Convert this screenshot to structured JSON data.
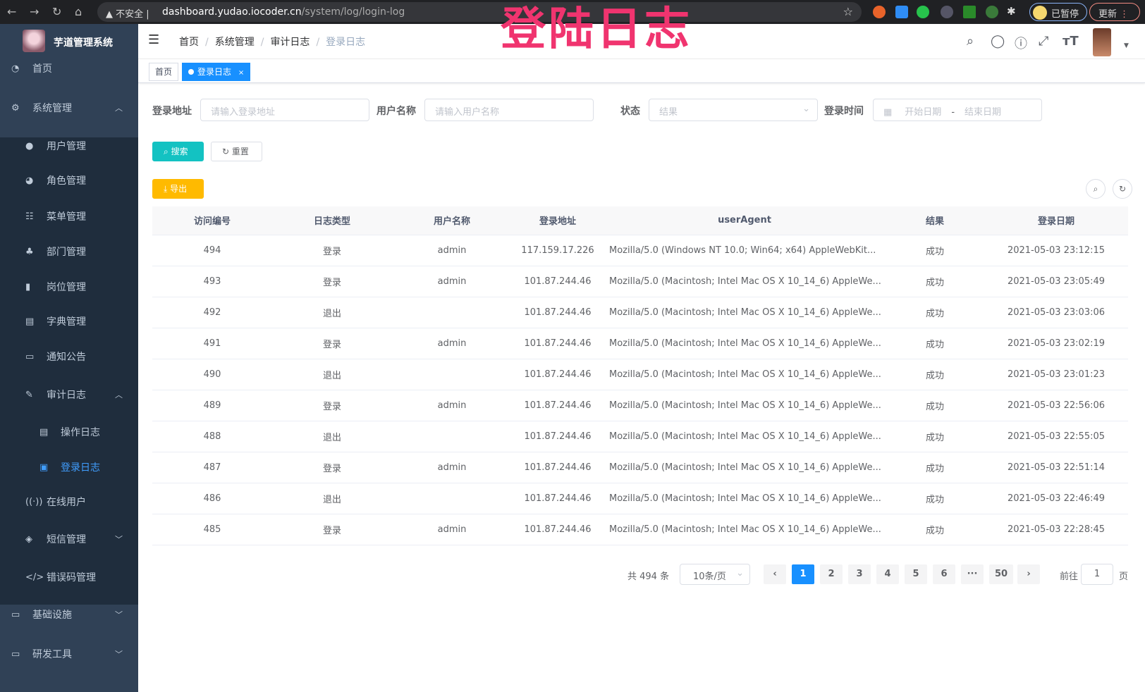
{
  "browser": {
    "security": "不安全",
    "host": "dashboard.yudao.iocoder.cn",
    "path": "/system/log/login-log",
    "paused": "已暂停",
    "update": "更新"
  },
  "app": {
    "title": "芋道管理系统"
  },
  "sidebar": {
    "items": [
      {
        "label": "首页",
        "icon": "dashboard-icon"
      },
      {
        "label": "系统管理",
        "icon": "gear-icon"
      },
      {
        "label": "用户管理",
        "icon": "user-icon"
      },
      {
        "label": "角色管理",
        "icon": "peoples-icon"
      },
      {
        "label": "菜单管理",
        "icon": "tree-table-icon"
      },
      {
        "label": "部门管理",
        "icon": "tree-icon"
      },
      {
        "label": "岗位管理",
        "icon": "post-icon"
      },
      {
        "label": "字典管理",
        "icon": "dict-icon"
      },
      {
        "label": "通知公告",
        "icon": "message-icon"
      },
      {
        "label": "审计日志",
        "icon": "log-icon"
      },
      {
        "label": "操作日志",
        "icon": "form-icon"
      },
      {
        "label": "登录日志",
        "icon": "logininfor-icon"
      },
      {
        "label": "在线用户",
        "icon": "online-icon"
      },
      {
        "label": "短信管理",
        "icon": "validCode-icon"
      },
      {
        "label": "错误码管理",
        "icon": "code-icon"
      },
      {
        "label": "基础设施",
        "icon": "monitor-icon"
      },
      {
        "label": "研发工具",
        "icon": "tool-icon"
      }
    ]
  },
  "breadcrumb": [
    "首页",
    "系统管理",
    "审计日志",
    "登录日志"
  ],
  "overlay_title": "登陆日志",
  "tags": {
    "home": "首页",
    "current": "登录日志",
    "close": "×"
  },
  "filters": {
    "address_label": "登录地址",
    "address_placeholder": "请输入登录地址",
    "username_label": "用户名称",
    "username_placeholder": "请输入用户名称",
    "status_label": "状态",
    "status_placeholder": "结果",
    "time_label": "登录时间",
    "start_placeholder": "开始日期",
    "end_placeholder": "结束日期",
    "range_sep": "-"
  },
  "buttons": {
    "search": "搜索",
    "reset": "重置",
    "export": "导出"
  },
  "table": {
    "headers": [
      "访问编号",
      "日志类型",
      "用户名称",
      "登录地址",
      "userAgent",
      "结果",
      "登录日期"
    ],
    "rows": [
      [
        "494",
        "登录",
        "admin",
        "117.159.17.226",
        "Mozilla/5.0 (Windows NT 10.0; Win64; x64) AppleWebKit...",
        "成功",
        "2021-05-03 23:12:15"
      ],
      [
        "493",
        "登录",
        "admin",
        "101.87.244.46",
        "Mozilla/5.0 (Macintosh; Intel Mac OS X 10_14_6) AppleWe...",
        "成功",
        "2021-05-03 23:05:49"
      ],
      [
        "492",
        "退出",
        "",
        "101.87.244.46",
        "Mozilla/5.0 (Macintosh; Intel Mac OS X 10_14_6) AppleWe...",
        "成功",
        "2021-05-03 23:03:06"
      ],
      [
        "491",
        "登录",
        "admin",
        "101.87.244.46",
        "Mozilla/5.0 (Macintosh; Intel Mac OS X 10_14_6) AppleWe...",
        "成功",
        "2021-05-03 23:02:19"
      ],
      [
        "490",
        "退出",
        "",
        "101.87.244.46",
        "Mozilla/5.0 (Macintosh; Intel Mac OS X 10_14_6) AppleWe...",
        "成功",
        "2021-05-03 23:01:23"
      ],
      [
        "489",
        "登录",
        "admin",
        "101.87.244.46",
        "Mozilla/5.0 (Macintosh; Intel Mac OS X 10_14_6) AppleWe...",
        "成功",
        "2021-05-03 22:56:06"
      ],
      [
        "488",
        "退出",
        "",
        "101.87.244.46",
        "Mozilla/5.0 (Macintosh; Intel Mac OS X 10_14_6) AppleWe...",
        "成功",
        "2021-05-03 22:55:05"
      ],
      [
        "487",
        "登录",
        "admin",
        "101.87.244.46",
        "Mozilla/5.0 (Macintosh; Intel Mac OS X 10_14_6) AppleWe...",
        "成功",
        "2021-05-03 22:51:14"
      ],
      [
        "486",
        "退出",
        "",
        "101.87.244.46",
        "Mozilla/5.0 (Macintosh; Intel Mac OS X 10_14_6) AppleWe...",
        "成功",
        "2021-05-03 22:46:49"
      ],
      [
        "485",
        "登录",
        "admin",
        "101.87.244.46",
        "Mozilla/5.0 (Macintosh; Intel Mac OS X 10_14_6) AppleWe...",
        "成功",
        "2021-05-03 22:28:45"
      ]
    ]
  },
  "pagination": {
    "total": "共 494 条",
    "page_size": "10条/页",
    "pages": [
      "1",
      "2",
      "3",
      "4",
      "5",
      "6",
      "···",
      "50"
    ],
    "current": "1",
    "goto_label": "前往",
    "goto_value": "1",
    "goto_suffix": "页"
  },
  "colors": {
    "sidebar": "#304156",
    "submenu": "#1f2d3d",
    "primary": "#1890ff",
    "search": "#13c2c2",
    "export": "#ffba00",
    "title_overlay": "#f0346f"
  }
}
